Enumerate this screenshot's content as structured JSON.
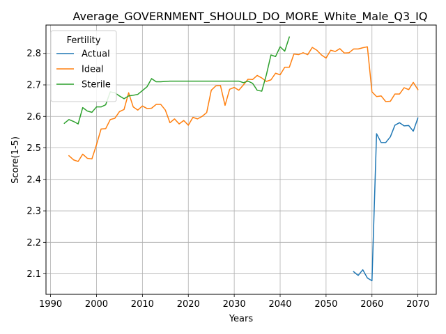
{
  "chart_data": {
    "type": "line",
    "title": "Average_GOVERNMENT_SHOULD_DO_MORE_White_Male_Q3_IQ",
    "xlabel": "Years",
    "ylabel": "Score(1-5)",
    "xlim": [
      1989,
      2074
    ],
    "ylim": [
      2.035,
      2.89
    ],
    "xticks": [
      1990,
      2000,
      2010,
      2020,
      2030,
      2040,
      2050,
      2060,
      2070
    ],
    "yticks": [
      2.1,
      2.2,
      2.3,
      2.4,
      2.5,
      2.6,
      2.7,
      2.8
    ],
    "grid": true,
    "legend": {
      "title": "Fertility",
      "position": "top-left"
    },
    "series": [
      {
        "name": "Actual",
        "color": "#1f77b4",
        "x": [
          2056,
          2057,
          2058,
          2059,
          2060,
          2061,
          2062,
          2063,
          2064,
          2065,
          2066,
          2067,
          2068,
          2069,
          2070
        ],
        "y": [
          2.107,
          2.095,
          2.113,
          2.087,
          2.078,
          2.545,
          2.517,
          2.517,
          2.535,
          2.572,
          2.58,
          2.57,
          2.571,
          2.553,
          2.595
        ]
      },
      {
        "name": "Ideal",
        "color": "#ff7f0e",
        "x": [
          1994,
          1995,
          1996,
          1997,
          1998,
          1999,
          2000,
          2001,
          2002,
          2003,
          2004,
          2005,
          2006,
          2007,
          2008,
          2009,
          2010,
          2011,
          2012,
          2013,
          2014,
          2015,
          2016,
          2017,
          2018,
          2019,
          2020,
          2021,
          2022,
          2023,
          2024,
          2025,
          2026,
          2027,
          2028,
          2029,
          2030,
          2031,
          2032,
          2033,
          2034,
          2035,
          2036,
          2037,
          2038,
          2039,
          2040,
          2041,
          2042,
          2043,
          2044,
          2045,
          2046,
          2047,
          2048,
          2049,
          2050,
          2051,
          2052,
          2053,
          2054,
          2055,
          2056,
          2057,
          2058,
          2059,
          2060,
          2061,
          2062,
          2063,
          2064,
          2065,
          2066,
          2067,
          2068,
          2069,
          2070
        ],
        "y": [
          2.475,
          2.462,
          2.457,
          2.48,
          2.467,
          2.465,
          2.51,
          2.56,
          2.561,
          2.59,
          2.594,
          2.615,
          2.622,
          2.675,
          2.63,
          2.62,
          2.633,
          2.625,
          2.626,
          2.638,
          2.638,
          2.62,
          2.58,
          2.592,
          2.576,
          2.587,
          2.572,
          2.597,
          2.592,
          2.6,
          2.612,
          2.683,
          2.697,
          2.698,
          2.635,
          2.686,
          2.692,
          2.683,
          2.7,
          2.718,
          2.717,
          2.73,
          2.722,
          2.711,
          2.716,
          2.737,
          2.732,
          2.756,
          2.756,
          2.798,
          2.796,
          2.802,
          2.796,
          2.819,
          2.81,
          2.795,
          2.785,
          2.81,
          2.806,
          2.815,
          2.801,
          2.802,
          2.814,
          2.814,
          2.818,
          2.821,
          2.678,
          2.663,
          2.665,
          2.647,
          2.648,
          2.671,
          2.671,
          2.691,
          2.685,
          2.708,
          2.685
        ]
      },
      {
        "name": "Sterile",
        "color": "#2ca02c",
        "x": [
          1993,
          1994,
          1995,
          1996,
          1997,
          1998,
          1999,
          2000,
          2001,
          2002,
          2003,
          2004,
          2005,
          2006,
          2007,
          2008,
          2009,
          2010,
          2011,
          2012,
          2013,
          2014,
          2015,
          2016,
          2017,
          2018,
          2019,
          2020,
          2021,
          2022,
          2023,
          2024,
          2025,
          2026,
          2027,
          2028,
          2029,
          2030,
          2031,
          2032,
          2033,
          2034,
          2035,
          2036,
          2037,
          2038,
          2039,
          2040,
          2041,
          2042
        ],
        "y": [
          2.578,
          2.59,
          2.584,
          2.576,
          2.628,
          2.617,
          2.613,
          2.63,
          2.63,
          2.637,
          2.678,
          2.675,
          2.665,
          2.656,
          2.665,
          2.667,
          2.67,
          2.682,
          2.694,
          2.72,
          2.71,
          2.71,
          2.711,
          2.712,
          2.712,
          2.712,
          2.712,
          2.712,
          2.712,
          2.712,
          2.712,
          2.712,
          2.712,
          2.712,
          2.712,
          2.712,
          2.712,
          2.712,
          2.712,
          2.707,
          2.712,
          2.705,
          2.683,
          2.68,
          2.732,
          2.795,
          2.79,
          2.821,
          2.807,
          2.852
        ]
      }
    ]
  }
}
